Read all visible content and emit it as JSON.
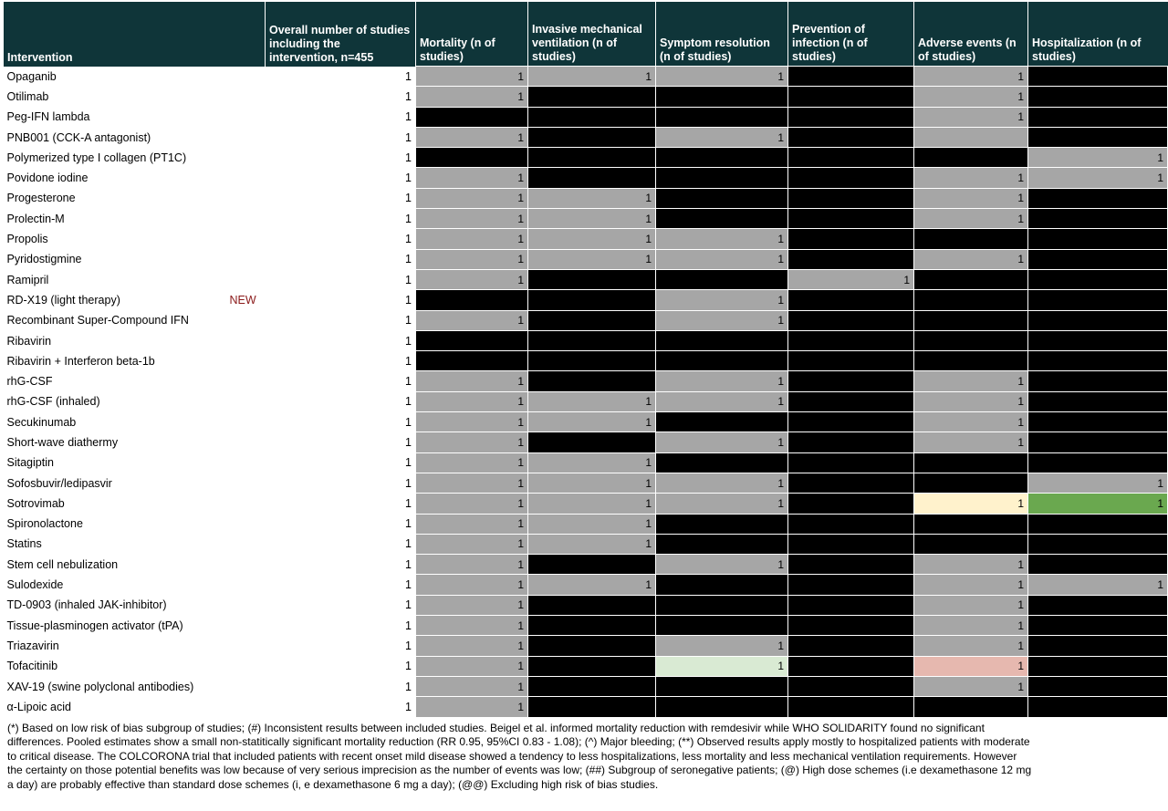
{
  "table": {
    "header": [
      "Intervention",
      "Overall number of studies including the intervention, n=455",
      "Mortality (n of studies)",
      "Invasive mechanical ventilation (n of studies)",
      "Symptom resolution (n of studies)",
      "Prevention of infection (n of studies)",
      "Adverse events (n of studies)",
      "Hospitalization (n of studies)"
    ],
    "header_color": "#0f3539",
    "cell_color": "#a6a6a6",
    "empty_color": "#000000",
    "rows": [
      {
        "name": "Opaganib",
        "overall": "1",
        "cells": [
          {
            "n": "1"
          },
          {
            "n": "1"
          },
          {
            "n": "1"
          },
          null,
          {
            "n": "1"
          },
          null
        ]
      },
      {
        "name": "Otilimab",
        "overall": "1",
        "cells": [
          {
            "n": "1"
          },
          null,
          null,
          null,
          {
            "n": "1"
          },
          null
        ]
      },
      {
        "name": "Peg-IFN lambda",
        "overall": "1",
        "cells": [
          null,
          null,
          null,
          null,
          {
            "n": "1"
          },
          null
        ]
      },
      {
        "name": "PNB001 (CCK-A antagonist)",
        "overall": "1",
        "cells": [
          {
            "n": "1"
          },
          null,
          {
            "n": "1"
          },
          null,
          {
            "color": "#a6a6a6"
          },
          null
        ]
      },
      {
        "name": "Polymerized type I collagen (PT1C)",
        "overall": "1",
        "cells": [
          null,
          null,
          null,
          null,
          null,
          {
            "n": "1"
          }
        ]
      },
      {
        "name": "Povidone iodine",
        "overall": "1",
        "cells": [
          {
            "n": "1"
          },
          null,
          null,
          null,
          {
            "n": "1"
          },
          {
            "n": "1"
          }
        ]
      },
      {
        "name": "Progesterone",
        "overall": "1",
        "cells": [
          {
            "n": "1"
          },
          {
            "n": "1"
          },
          null,
          null,
          {
            "n": "1"
          },
          null
        ]
      },
      {
        "name": "Prolectin-M",
        "overall": "1",
        "cells": [
          {
            "n": "1"
          },
          {
            "n": "1"
          },
          null,
          null,
          {
            "n": "1"
          },
          null
        ]
      },
      {
        "name": "Propolis",
        "overall": "1",
        "cells": [
          {
            "n": "1"
          },
          {
            "n": "1"
          },
          {
            "n": "1"
          },
          null,
          null,
          null
        ]
      },
      {
        "name": "Pyridostigmine",
        "overall": "1",
        "cells": [
          {
            "n": "1"
          },
          {
            "n": "1"
          },
          {
            "n": "1"
          },
          null,
          {
            "n": "1"
          },
          null
        ]
      },
      {
        "name": "Ramipril",
        "overall": "1",
        "cells": [
          {
            "n": "1"
          },
          null,
          null,
          {
            "n": "1"
          },
          null,
          null
        ]
      },
      {
        "name": "RD-X19 (light therapy)",
        "tag": "NEW",
        "overall": "1",
        "cells": [
          null,
          null,
          {
            "n": "1"
          },
          null,
          null,
          null
        ]
      },
      {
        "name": "Recombinant Super-Compound IFN",
        "overall": "1",
        "cells": [
          {
            "n": "1"
          },
          null,
          {
            "n": "1"
          },
          null,
          null,
          null
        ]
      },
      {
        "name": "Ribavirin",
        "overall": "1",
        "cells": [
          null,
          null,
          null,
          null,
          null,
          null
        ]
      },
      {
        "name": "Ribavirin + Interferon beta-1b",
        "overall": "1",
        "cells": [
          null,
          null,
          null,
          null,
          null,
          null
        ]
      },
      {
        "name": "rhG-CSF",
        "overall": "1",
        "cells": [
          {
            "n": "1"
          },
          null,
          {
            "n": "1"
          },
          null,
          {
            "n": "1"
          },
          null
        ]
      },
      {
        "name": "rhG-CSF (inhaled)",
        "overall": "1",
        "cells": [
          {
            "n": "1"
          },
          {
            "n": "1"
          },
          {
            "n": "1"
          },
          null,
          {
            "n": "1"
          },
          null
        ]
      },
      {
        "name": "Secukinumab",
        "overall": "1",
        "cells": [
          {
            "n": "1"
          },
          {
            "n": "1"
          },
          null,
          null,
          {
            "n": "1"
          },
          null
        ]
      },
      {
        "name": "Short-wave diathermy",
        "overall": "1",
        "cells": [
          {
            "n": "1"
          },
          null,
          {
            "n": "1"
          },
          null,
          {
            "n": "1"
          },
          null
        ]
      },
      {
        "name": "Sitagiptin",
        "overall": "1",
        "cells": [
          {
            "n": "1"
          },
          {
            "n": "1"
          },
          null,
          null,
          null,
          null
        ]
      },
      {
        "name": "Sofosbuvir/ledipasvir",
        "overall": "1",
        "cells": [
          {
            "n": "1"
          },
          {
            "n": "1"
          },
          {
            "n": "1"
          },
          null,
          null,
          {
            "n": "1"
          }
        ]
      },
      {
        "name": "Sotrovimab",
        "overall": "1",
        "cells": [
          {
            "n": "1"
          },
          {
            "n": "1"
          },
          {
            "n": "1"
          },
          null,
          {
            "n": "1",
            "color": "#fff2cc"
          },
          {
            "n": "1",
            "color": "#6aa84f"
          }
        ]
      },
      {
        "name": "Spironolactone",
        "overall": "1",
        "cells": [
          {
            "n": "1"
          },
          {
            "n": "1"
          },
          null,
          null,
          null,
          null
        ]
      },
      {
        "name": "Statins",
        "overall": "1",
        "cells": [
          {
            "n": "1"
          },
          {
            "n": "1"
          },
          null,
          null,
          null,
          null
        ]
      },
      {
        "name": "Stem cell nebulization",
        "overall": "1",
        "cells": [
          {
            "n": "1"
          },
          null,
          {
            "n": "1"
          },
          null,
          {
            "n": "1"
          },
          null
        ]
      },
      {
        "name": "Sulodexide",
        "overall": "1",
        "cells": [
          {
            "n": "1"
          },
          {
            "n": "1"
          },
          null,
          null,
          {
            "n": "1"
          },
          {
            "n": "1"
          }
        ]
      },
      {
        "name": "TD-0903 (inhaled JAK-inhibitor)",
        "overall": "1",
        "cells": [
          {
            "n": "1"
          },
          null,
          null,
          null,
          {
            "n": "1"
          },
          null
        ]
      },
      {
        "name": "Tissue-plasminogen activator (tPA)",
        "overall": "1",
        "cells": [
          {
            "n": "1"
          },
          null,
          null,
          null,
          {
            "n": "1"
          },
          null
        ]
      },
      {
        "name": "Triazavirin",
        "overall": "1",
        "cells": [
          {
            "n": "1"
          },
          null,
          {
            "n": "1"
          },
          null,
          {
            "n": "1"
          },
          null
        ]
      },
      {
        "name": "Tofacitinib",
        "overall": "1",
        "cells": [
          {
            "n": "1"
          },
          null,
          {
            "n": "1",
            "color": "#d9ead3"
          },
          null,
          {
            "n": "1",
            "color": "#e6b8af"
          },
          null
        ]
      },
      {
        "name": "XAV-19 (swine polyclonal antibodies)",
        "overall": "1",
        "cells": [
          {
            "n": "1"
          },
          null,
          null,
          null,
          {
            "n": "1"
          },
          null
        ]
      },
      {
        "name": "α-Lipoic acid",
        "overall": "1",
        "cells": [
          {
            "n": "1"
          },
          null,
          null,
          null,
          null,
          null
        ]
      }
    ]
  },
  "footnote": "(*) Based on low risk of bias subgroup of studies; (#) Inconsistent results between included studies. Beigel et al. informed mortality reduction with remdesivir while WHO SOLIDARITY found no significant differences. Pooled estimates show a small non-statitically significant mortality reduction (RR 0.95, 95%CI 0.83 - 1.08); (^) Major bleeding; (**) Observed results apply mostly to hospitalized patients with moderate to critical disease. The COLCORONA trial that included patients with recent onset mild disease showed a tendency to less hospitalizations, less mortality and less mechanical ventilation requirements. However the certainty on those potential benefits was low because of very serious imprecision as the number of events was low; (##) Subgroup of seronegative patients; (@) High dose schemes (i.e dexamethasone 12 mg a day) are probably effective than standard dose schemes (i, e dexamethasone 6 mg a day); (@@) Excluding high risk of bias studies."
}
